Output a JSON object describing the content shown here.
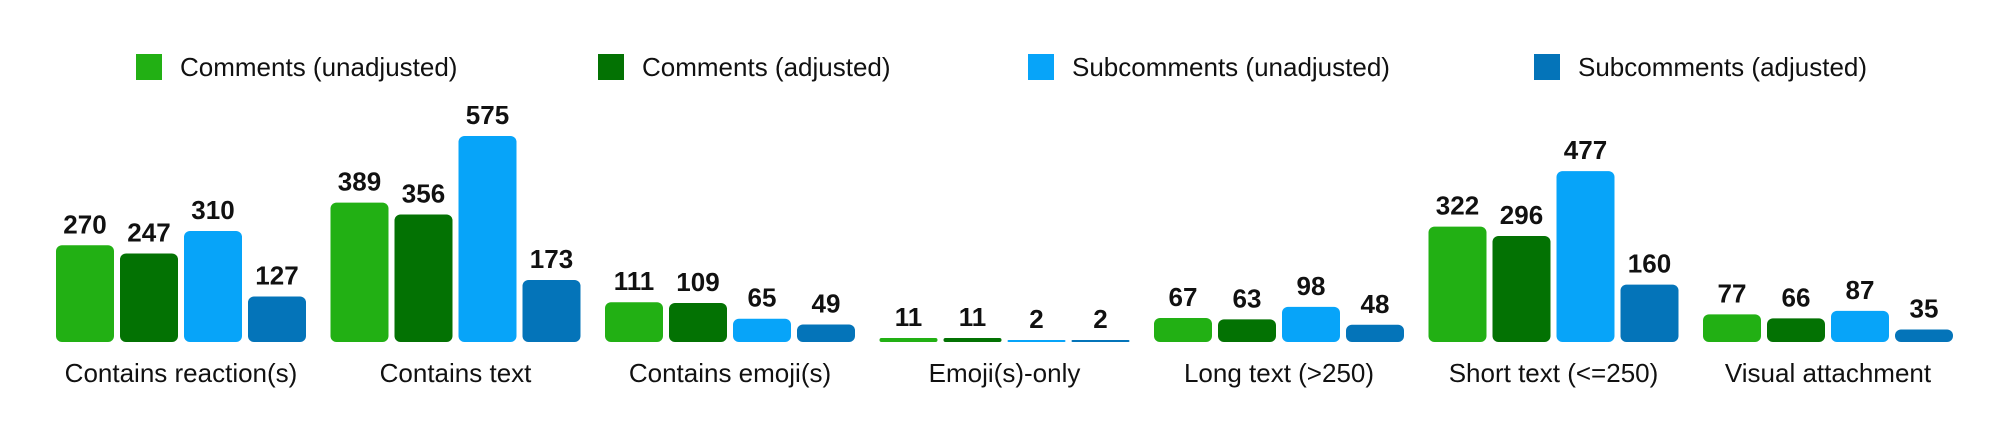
{
  "chart_data": {
    "type": "bar",
    "title": "",
    "xlabel": "",
    "ylabel": "",
    "ylim": [
      0,
      575
    ],
    "grid": false,
    "legend_position": "top",
    "categories": [
      "Contains reaction(s)",
      "Contains text",
      "Contains emoji(s)",
      "Emoji(s)-only",
      "Long text (>250)",
      "Short text (<=250)",
      "Visual attachment"
    ],
    "series": [
      {
        "name": "Comments (unadjusted)",
        "color": "#22b014",
        "values": [
          270,
          389,
          111,
          11,
          67,
          322,
          77
        ]
      },
      {
        "name": "Comments (adjusted)",
        "color": "#037203",
        "values": [
          247,
          356,
          109,
          11,
          63,
          296,
          66
        ]
      },
      {
        "name": "Subcomments (unadjusted)",
        "color": "#07a4f9",
        "values": [
          310,
          575,
          65,
          2,
          98,
          477,
          87
        ]
      },
      {
        "name": "Subcomments (adjusted)",
        "color": "#0474b9",
        "values": [
          127,
          173,
          49,
          2,
          48,
          160,
          35
        ]
      }
    ]
  }
}
